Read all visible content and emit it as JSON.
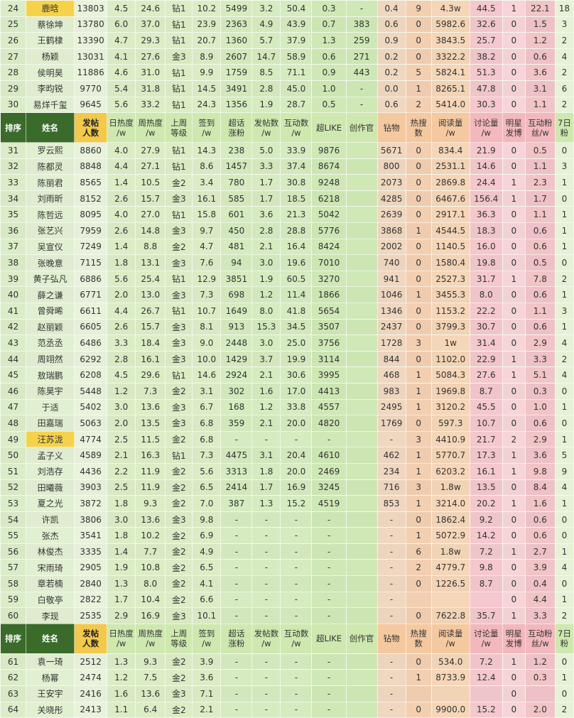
{
  "table": {
    "header": [
      "排序",
      "姓名",
      "发帖\n人数",
      "日热度\n/w",
      "周热度\n/w",
      "上周\n等级",
      "签到\n/w",
      "超话\n涨粉",
      "发帖数\n/w",
      "互动数\n/w",
      "超LIKE",
      "创作官",
      "钻物",
      "热搜数",
      "阅读量\n/w",
      "讨论量\n/w",
      "明星\n发博",
      "互动粉\n丝/w",
      "7日\n粉"
    ],
    "rows": [
      [
        "24",
        "鹿晗",
        "13803",
        "4.5",
        "24.6",
        "钻1",
        "10.2",
        "5499",
        "3.2",
        "50.4",
        "0.3",
        "-",
        "0.4",
        "9",
        "4.3w",
        "44.5",
        "1",
        "22.1",
        "18"
      ],
      [
        "25",
        "蔡徐坤",
        "13780",
        "6.0",
        "37.0",
        "钻1",
        "23.9",
        "2363",
        "4.9",
        "43.9",
        "0.7",
        "383",
        "0.6",
        "0",
        "5982.6",
        "32.6",
        "0",
        "1.5",
        "3"
      ],
      [
        "26",
        "王鹤棣",
        "13390",
        "4.7",
        "29.3",
        "钻1",
        "20.7",
        "1360",
        "5.7",
        "37.9",
        "1.3",
        "259",
        "0.9",
        "0",
        "3843.5",
        "25.7",
        "0",
        "1.2",
        "2"
      ],
      [
        "27",
        "杨颖",
        "13031",
        "4.1",
        "27.6",
        "金3",
        "8.9",
        "2607",
        "14.7",
        "58.9",
        "0.6",
        "271",
        "0.2",
        "0",
        "3322.2",
        "38.2",
        "0",
        "0.6",
        "4"
      ],
      [
        "28",
        "侯明昊",
        "11886",
        "4.6",
        "31.0",
        "钻1",
        "9.9",
        "1759",
        "8.5",
        "71.1",
        "0.9",
        "443",
        "0.2",
        "5",
        "5824.1",
        "51.3",
        "0",
        "3.6",
        "2"
      ],
      [
        "29",
        "李昀锐",
        "9770",
        "5.4",
        "31.8",
        "钻1",
        "14.5",
        "3491",
        "2.8",
        "45.0",
        "1.0",
        "-",
        "0.0",
        "1",
        "8265.1",
        "47.8",
        "0",
        "3.1",
        "6"
      ],
      [
        "30",
        "易烊千玺",
        "9645",
        "5.6",
        "33.2",
        "钻1",
        "24.3",
        "1356",
        "1.9",
        "28.7",
        "0.5",
        "-",
        "0.6",
        "2",
        "5414.0",
        "30.3",
        "0",
        "1.1",
        "2"
      ],
      [
        "__header__"
      ],
      [
        "31",
        "罗云熙",
        "8860",
        "4.0",
        "27.9",
        "钻1",
        "14.3",
        "238",
        "5.0",
        "33.9",
        "9876",
        "",
        "5671",
        "0",
        "834.4",
        "21.9",
        "0",
        "0.5",
        "0"
      ],
      [
        "32",
        "陈都灵",
        "8848",
        "4.4",
        "27.1",
        "钻1",
        "8.6",
        "1457",
        "3.3",
        "37.4",
        "8674",
        "",
        "800",
        "0",
        "2531.1",
        "14.6",
        "0",
        "1.1",
        "3"
      ],
      [
        "33",
        "陈丽君",
        "8565",
        "1.4",
        "10.5",
        "金2",
        "3.4",
        "780",
        "1.7",
        "30.8",
        "9248",
        "",
        "2073",
        "0",
        "2869.8",
        "24.4",
        "1",
        "2.3",
        "1"
      ],
      [
        "34",
        "刘雨昕",
        "8152",
        "2.6",
        "15.7",
        "金3",
        "16.1",
        "585",
        "1.7",
        "18.5",
        "6218",
        "",
        "4285",
        "0",
        "6467.6",
        "156.4",
        "1",
        "1.7",
        "0"
      ],
      [
        "35",
        "陈哲远",
        "8095",
        "4.0",
        "27.0",
        "钻1",
        "15.8",
        "601",
        "3.6",
        "21.3",
        "5042",
        "",
        "2639",
        "0",
        "2917.1",
        "36.3",
        "0",
        "1.1",
        "1"
      ],
      [
        "36",
        "张艺兴",
        "7959",
        "2.6",
        "14.8",
        "金3",
        "9.7",
        "450",
        "2.8",
        "28.8",
        "5776",
        "",
        "3868",
        "1",
        "4544.5",
        "18.3",
        "0",
        "0.6",
        "1"
      ],
      [
        "37",
        "吴宣仪",
        "7249",
        "1.4",
        "8.8",
        "金2",
        "4.7",
        "481",
        "2.1",
        "16.4",
        "8424",
        "",
        "2002",
        "0",
        "1140.5",
        "16.0",
        "0",
        "0.6",
        "1"
      ],
      [
        "38",
        "张晚意",
        "7115",
        "1.8",
        "13.1",
        "金3",
        "7.6",
        "94",
        "3.0",
        "19.6",
        "7010",
        "",
        "740",
        "0",
        "1580.4",
        "19.8",
        "0",
        "0.5",
        "0"
      ],
      [
        "39",
        "黄子弘凡",
        "6886",
        "5.6",
        "25.4",
        "钻1",
        "12.9",
        "3851",
        "1.9",
        "60.5",
        "3270",
        "",
        "941",
        "0",
        "2527.3",
        "31.7",
        "1",
        "7.8",
        "2"
      ],
      [
        "40",
        "薛之谦",
        "6771",
        "2.0",
        "13.0",
        "金3",
        "7.3",
        "698",
        "1.2",
        "11.4",
        "1866",
        "",
        "1046",
        "1",
        "3455.3",
        "8.0",
        "0",
        "0.6",
        "1"
      ],
      [
        "41",
        "曾舜晞",
        "6611",
        "4.4",
        "26.7",
        "钻1",
        "10.7",
        "1649",
        "8.0",
        "41.8",
        "5654",
        "",
        "1346",
        "0",
        "1153.2",
        "22.2",
        "0",
        "1.1",
        "3"
      ],
      [
        "42",
        "赵丽颖",
        "6605",
        "2.6",
        "15.7",
        "金3",
        "8.1",
        "913",
        "15.3",
        "34.5",
        "3507",
        "",
        "2437",
        "0",
        "3799.3",
        "30.7",
        "0",
        "0.6",
        "1"
      ],
      [
        "43",
        "范丞丞",
        "6486",
        "3.3",
        "18.4",
        "金3",
        "9.0",
        "2448",
        "3.0",
        "25.0",
        "3756",
        "",
        "1728",
        "3",
        "1w",
        "31.4",
        "0",
        "2.9",
        "4"
      ],
      [
        "44",
        "周翊然",
        "6292",
        "2.8",
        "16.1",
        "金3",
        "10.0",
        "1429",
        "3.7",
        "19.9",
        "3114",
        "",
        "844",
        "0",
        "1102.0",
        "22.9",
        "1",
        "3.3",
        "2"
      ],
      [
        "45",
        "敖瑞鹏",
        "6208",
        "4.5",
        "29.6",
        "钻1",
        "14.6",
        "2924",
        "2.1",
        "30.6",
        "3995",
        "",
        "468",
        "1",
        "5084.3",
        "27.6",
        "1",
        "5.1",
        "4"
      ],
      [
        "46",
        "陈昊宇",
        "5448",
        "1.2",
        "7.3",
        "金2",
        "3.1",
        "302",
        "1.6",
        "17.0",
        "4413",
        "",
        "983",
        "1",
        "1969.8",
        "8.7",
        "0",
        "0.3",
        "0"
      ],
      [
        "47",
        "于适",
        "5402",
        "3.0",
        "13.6",
        "金3",
        "6.7",
        "168",
        "1.2",
        "33.8",
        "4557",
        "",
        "2495",
        "1",
        "3120.2",
        "45.5",
        "0",
        "1.0",
        "1"
      ],
      [
        "48",
        "田嘉瑞",
        "5063",
        "2.0",
        "13.5",
        "金3",
        "6.8",
        "359",
        "2.1",
        "20.0",
        "4820",
        "",
        "1769",
        "0",
        "597.3",
        "10.7",
        "0",
        "0.6",
        "0"
      ],
      [
        "49",
        "汪苏泷",
        "4774",
        "2.5",
        "11.5",
        "金2",
        "6.8",
        "-",
        "-",
        "-",
        "-",
        "",
        "-",
        "3",
        "4410.9",
        "21.7",
        "2",
        "2.9",
        "1"
      ],
      [
        "50",
        "孟子义",
        "4589",
        "2.1",
        "16.3",
        "钻1",
        "7.3",
        "4475",
        "3.1",
        "20.4",
        "4610",
        "",
        "462",
        "1",
        "5770.7",
        "17.3",
        "1",
        "3.6",
        "5"
      ],
      [
        "51",
        "刘浩存",
        "4436",
        "2.2",
        "11.9",
        "金2",
        "5.6",
        "3313",
        "1.8",
        "20.0",
        "2469",
        "",
        "234",
        "1",
        "6203.2",
        "16.1",
        "1",
        "9.8",
        "9"
      ],
      [
        "52",
        "田曦薇",
        "3903",
        "2.5",
        "11.9",
        "金2",
        "6.5",
        "2414",
        "1.7",
        "16.9",
        "3245",
        "",
        "716",
        "3",
        "1.8w",
        "13.5",
        "0",
        "8.4",
        "4"
      ],
      [
        "53",
        "夏之光",
        "3872",
        "1.8",
        "9.3",
        "金2",
        "7.0",
        "387",
        "1.3",
        "15.2",
        "4519",
        "",
        "853",
        "1",
        "3214.0",
        "20.2",
        "1",
        "1.6",
        "1"
      ],
      [
        "54",
        "许凯",
        "3806",
        "3.0",
        "13.6",
        "金3",
        "9.8",
        "-",
        "-",
        "-",
        "-",
        "",
        "-",
        "0",
        "1862.4",
        "9.2",
        "0",
        "0.6",
        "0"
      ],
      [
        "55",
        "张杰",
        "3541",
        "1.8",
        "10.2",
        "金2",
        "6.9",
        "-",
        "-",
        "-",
        "-",
        "",
        "-",
        "1",
        "5072.9",
        "14.2",
        "0",
        "0.6",
        "0"
      ],
      [
        "56",
        "林俊杰",
        "3335",
        "1.4",
        "7.7",
        "金2",
        "4.9",
        "-",
        "-",
        "-",
        "-",
        "",
        "-",
        "6",
        "1.8w",
        "7.2",
        "1",
        "2.7",
        "1"
      ],
      [
        "57",
        "宋雨琦",
        "2905",
        "1.9",
        "10.8",
        "金2",
        "6.5",
        "-",
        "-",
        "-",
        "-",
        "",
        "-",
        "2",
        "4779.7",
        "9.8",
        "0",
        "3.9",
        "4"
      ],
      [
        "58",
        "章若楠",
        "2840",
        "1.3",
        "8.0",
        "金2",
        "4.1",
        "-",
        "-",
        "-",
        "-",
        "",
        "-",
        "0",
        "1226.5",
        "8.7",
        "0",
        "0.4",
        "0"
      ],
      [
        "59",
        "白敬亭",
        "2822",
        "1.7",
        "10.4",
        "金2",
        "6.6",
        "-",
        "-",
        "-",
        "-",
        "",
        "-",
        "",
        "",
        "",
        "0",
        "4.4",
        "1"
      ],
      [
        "60",
        "李现",
        "2535",
        "2.9",
        "16.9",
        "金3",
        "10.1",
        "-",
        "-",
        "-",
        "-",
        "",
        "-",
        "0",
        "7622.8",
        "35.7",
        "1",
        "3.3",
        "2"
      ],
      [
        "__header__"
      ],
      [
        "61",
        "袁一琦",
        "2512",
        "1.3",
        "9.3",
        "金2",
        "3.9",
        "-",
        "-",
        "-",
        "-",
        "",
        "-",
        "0",
        "534.0",
        "7.2",
        "1",
        "1.2",
        "0"
      ],
      [
        "62",
        "杨幂",
        "2474",
        "1.2",
        "7.5",
        "金2",
        "3.6",
        "-",
        "-",
        "-",
        "-",
        "",
        "-",
        "1",
        "8733.9",
        "12.4",
        "0",
        "0.3",
        "1"
      ],
      [
        "63",
        "王安宇",
        "2416",
        "1.6",
        "13.6",
        "金3",
        "7.1",
        "-",
        "-",
        "-",
        "-",
        "",
        "-",
        "",
        "",
        "",
        "0",
        "",
        "0"
      ],
      [
        "64",
        "关晓彤",
        "2413",
        "1.1",
        "6.4",
        "金2",
        "2.1",
        "-",
        "-",
        "-",
        "-",
        "",
        "-",
        "0",
        "9900.0",
        "15.2",
        "0",
        "2.0",
        "2"
      ]
    ],
    "highlight_cells": [
      [
        24,
        2
      ],
      [
        24,
        6
      ],
      [
        24,
        7
      ],
      [
        24,
        14
      ],
      [
        25,
        14
      ],
      [
        26,
        14
      ],
      [
        26,
        15
      ],
      [
        39,
        3
      ],
      [
        40,
        2
      ],
      [
        40,
        3
      ],
      [
        40,
        15
      ],
      [
        44,
        6
      ],
      [
        44,
        15
      ],
      [
        46,
        2
      ],
      [
        47,
        3
      ],
      [
        49,
        2
      ],
      [
        49,
        3
      ],
      [
        49,
        14
      ],
      [
        49,
        15
      ],
      [
        50,
        7
      ],
      [
        51,
        2
      ],
      [
        51,
        14
      ],
      [
        52,
        14
      ],
      [
        54,
        3
      ],
      [
        55,
        2
      ],
      [
        56,
        2
      ],
      [
        56,
        14
      ],
      [
        61,
        3
      ],
      [
        61,
        14
      ]
    ],
    "highlight_name_rows": [
      24,
      49
    ]
  },
  "colors": {
    "header_green": "#3a6b2b",
    "header_yellow": "#f2c94c",
    "highlight_text": "#c9602b"
  }
}
